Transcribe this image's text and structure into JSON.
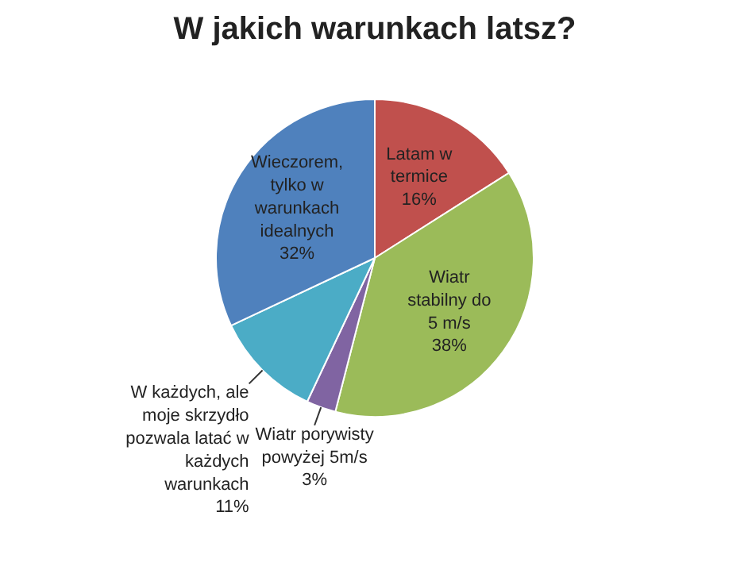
{
  "chart_data": {
    "type": "pie",
    "title": "W jakich warunkach latsz?",
    "categories": [
      "Latam w termice",
      "Wiatr stabilny do 5 m/s",
      "Wiatr porywisty powyżej 5m/s",
      "W każdych, ale moje skrzydło pozwala latać w każdych warunkach",
      "Wieczorem, tylko w warunkach idealnych"
    ],
    "values": [
      16,
      38,
      3,
      11,
      32
    ],
    "colors": [
      "#c0504d",
      "#9bbb59",
      "#8064a2",
      "#4bacc6",
      "#4f81bd"
    ],
    "value_labels": [
      "16%",
      "38%",
      "3%",
      "11%",
      "32%"
    ]
  }
}
